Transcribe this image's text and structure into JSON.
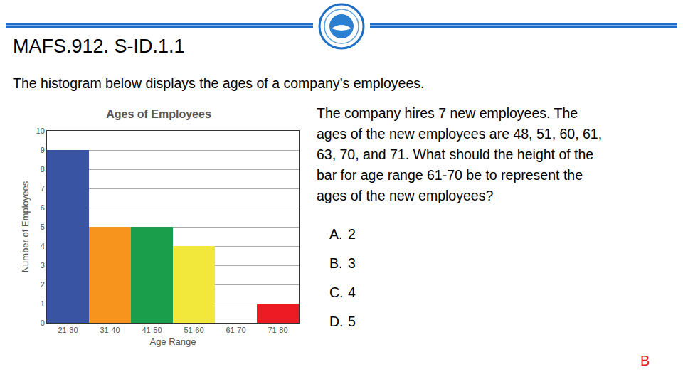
{
  "header": {
    "title": "MAFS.912. S-ID.1.1"
  },
  "intro": "The histogram below displays the ages of a company’s employees.",
  "question": [
    "The company hires 7 new employees. The",
    "ages of the new employees are 48, 51, 60, 61,",
    "63, 70, and 71. What should the height of the",
    "bar for age range 61-70 be to represent the",
    "ages of the new employees?"
  ],
  "options": [
    {
      "letter": "A.",
      "text": "2"
    },
    {
      "letter": "B.",
      "text": "3"
    },
    {
      "letter": "C.",
      "text": "4"
    },
    {
      "letter": "D.",
      "text": "5"
    }
  ],
  "answer": "B",
  "chart_data": {
    "type": "bar",
    "title": "Ages of Employees",
    "x_label": "Age Range",
    "y_label": "Number of Employees",
    "categories": [
      "21-30",
      "31-40",
      "41-50",
      "51-60",
      "61-70",
      "71-80"
    ],
    "values": [
      9,
      5,
      5,
      4,
      0,
      1
    ],
    "colors": [
      "#3a54a4",
      "#f7941d",
      "#1b9e4b",
      "#f1e83b",
      "#ffffff",
      "#ed1c24"
    ],
    "ylim": [
      0,
      10
    ],
    "yticks": [
      0,
      1,
      2,
      3,
      4,
      5,
      6,
      7,
      8,
      9,
      10
    ],
    "grid": true
  }
}
